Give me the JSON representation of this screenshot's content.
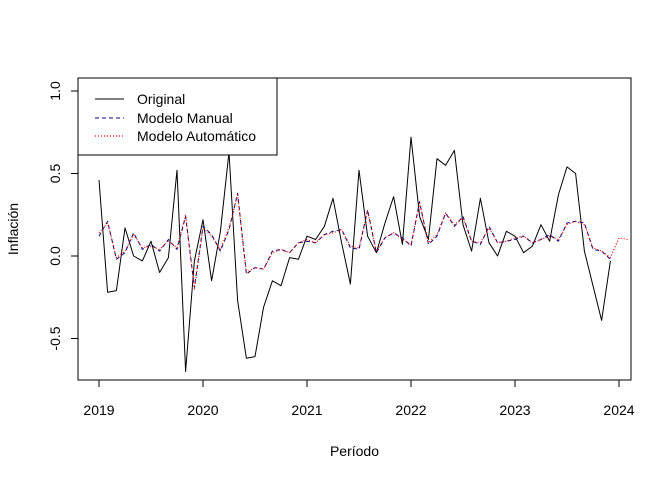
{
  "chart_data": {
    "type": "line",
    "title": "",
    "xlabel": "Período",
    "ylabel": "Inflación",
    "xlim": [
      2018.8,
      2024.1
    ],
    "ylim": [
      -0.8,
      1.1
    ],
    "x_ticks": [
      "2019",
      "2020",
      "2021",
      "2022",
      "2023",
      "2024"
    ],
    "y_ticks": [
      "-0.5",
      "0.0",
      "0.5",
      "1.0"
    ],
    "grid": false,
    "legend_position": "top-left",
    "series": [
      {
        "name": "Original",
        "color": "#000000",
        "style": "solid",
        "x": [
          2019.0,
          2019.083,
          2019.167,
          2019.25,
          2019.333,
          2019.417,
          2019.5,
          2019.583,
          2019.667,
          2019.75,
          2019.833,
          2019.917,
          2020.0,
          2020.083,
          2020.167,
          2020.25,
          2020.333,
          2020.417,
          2020.5,
          2020.583,
          2020.667,
          2020.75,
          2020.833,
          2020.917,
          2021.0,
          2021.083,
          2021.167,
          2021.25,
          2021.333,
          2021.417,
          2021.5,
          2021.583,
          2021.667,
          2021.75,
          2021.833,
          2021.917,
          2022.0,
          2022.083,
          2022.167,
          2022.25,
          2022.333,
          2022.417,
          2022.5,
          2022.583,
          2022.667,
          2022.75,
          2022.833,
          2022.917,
          2023.0,
          2023.083,
          2023.167,
          2023.25,
          2023.333,
          2023.417,
          2023.5,
          2023.583,
          2023.667,
          2023.75,
          2023.833,
          2023.917
        ],
        "values": [
          0.46,
          -0.22,
          -0.21,
          0.17,
          0.0,
          -0.03,
          0.09,
          -0.1,
          -0.01,
          0.52,
          -0.7,
          -0.03,
          0.22,
          -0.15,
          0.15,
          0.63,
          -0.27,
          -0.62,
          -0.61,
          -0.31,
          -0.15,
          -0.18,
          -0.01,
          -0.02,
          0.12,
          0.1,
          0.18,
          0.35,
          0.08,
          -0.17,
          0.52,
          0.12,
          0.02,
          0.2,
          0.36,
          0.07,
          0.72,
          0.24,
          0.1,
          0.59,
          0.55,
          0.64,
          0.19,
          0.03,
          0.35,
          0.08,
          0.0,
          0.15,
          0.12,
          0.02,
          0.06,
          0.19,
          0.09,
          0.37,
          0.54,
          0.5,
          0.03,
          -0.18,
          -0.39,
          -0.03
        ]
      },
      {
        "name": "Modelo Manual",
        "color": "#000080",
        "style": "dashed",
        "x": [
          2019.0,
          2019.083,
          2019.167,
          2019.25,
          2019.333,
          2019.417,
          2019.5,
          2019.583,
          2019.667,
          2019.75,
          2019.833,
          2019.917,
          2020.0,
          2020.083,
          2020.167,
          2020.25,
          2020.333,
          2020.417,
          2020.5,
          2020.583,
          2020.667,
          2020.75,
          2020.833,
          2020.917,
          2021.0,
          2021.083,
          2021.167,
          2021.25,
          2021.333,
          2021.417,
          2021.5,
          2021.583,
          2021.667,
          2021.75,
          2021.833,
          2021.917,
          2022.0,
          2022.083,
          2022.167,
          2022.25,
          2022.333,
          2022.417,
          2022.5,
          2022.583,
          2022.667,
          2022.75,
          2022.833,
          2022.917,
          2023.0,
          2023.083,
          2023.167,
          2023.25,
          2023.333,
          2023.417,
          2023.5,
          2023.583,
          2023.667,
          2023.75,
          2023.833,
          2023.917
        ],
        "values": [
          0.12,
          0.21,
          -0.02,
          0.02,
          0.14,
          0.04,
          0.07,
          0.03,
          0.1,
          0.04,
          0.24,
          -0.19,
          0.18,
          0.13,
          0.03,
          0.16,
          0.38,
          -0.11,
          -0.07,
          -0.08,
          0.03,
          0.04,
          0.02,
          0.08,
          0.09,
          0.08,
          0.13,
          0.15,
          0.16,
          0.05,
          0.04,
          0.28,
          0.02,
          0.11,
          0.14,
          0.11,
          0.06,
          0.33,
          0.07,
          0.12,
          0.26,
          0.18,
          0.24,
          0.09,
          0.07,
          0.18,
          0.08,
          0.09,
          0.1,
          0.12,
          0.08,
          0.1,
          0.13,
          0.09,
          0.2,
          0.21,
          0.2,
          0.04,
          0.03,
          -0.02
        ]
      },
      {
        "name": "Modelo Automático",
        "color": "#ff0000",
        "style": "dotted",
        "x": [
          2019.0,
          2019.083,
          2019.167,
          2019.25,
          2019.333,
          2019.417,
          2019.5,
          2019.583,
          2019.667,
          2019.75,
          2019.833,
          2019.917,
          2020.0,
          2020.083,
          2020.167,
          2020.25,
          2020.333,
          2020.417,
          2020.5,
          2020.583,
          2020.667,
          2020.75,
          2020.833,
          2020.917,
          2021.0,
          2021.083,
          2021.167,
          2021.25,
          2021.333,
          2021.417,
          2021.5,
          2021.583,
          2021.667,
          2021.75,
          2021.833,
          2021.917,
          2022.0,
          2022.083,
          2022.167,
          2022.25,
          2022.333,
          2022.417,
          2022.5,
          2022.583,
          2022.667,
          2022.75,
          2022.833,
          2022.917,
          2023.0,
          2023.083,
          2023.167,
          2023.25,
          2023.333,
          2023.417,
          2023.5,
          2023.583,
          2023.667,
          2023.75,
          2023.833,
          2023.917,
          2024.0,
          2024.083
        ],
        "values": [
          0.14,
          0.2,
          -0.01,
          0.03,
          0.13,
          0.05,
          0.06,
          0.04,
          0.09,
          0.05,
          0.25,
          -0.2,
          0.17,
          0.12,
          0.04,
          0.17,
          0.37,
          -0.1,
          -0.07,
          -0.08,
          0.02,
          0.04,
          0.02,
          0.08,
          0.1,
          0.08,
          0.13,
          0.14,
          0.16,
          0.06,
          0.05,
          0.27,
          0.03,
          0.11,
          0.14,
          0.1,
          0.07,
          0.32,
          0.08,
          0.13,
          0.26,
          0.19,
          0.23,
          0.09,
          0.08,
          0.17,
          0.08,
          0.09,
          0.11,
          0.12,
          0.08,
          0.1,
          0.12,
          0.1,
          0.19,
          0.21,
          0.19,
          0.05,
          0.03,
          -0.01,
          0.11,
          0.1
        ]
      }
    ]
  }
}
